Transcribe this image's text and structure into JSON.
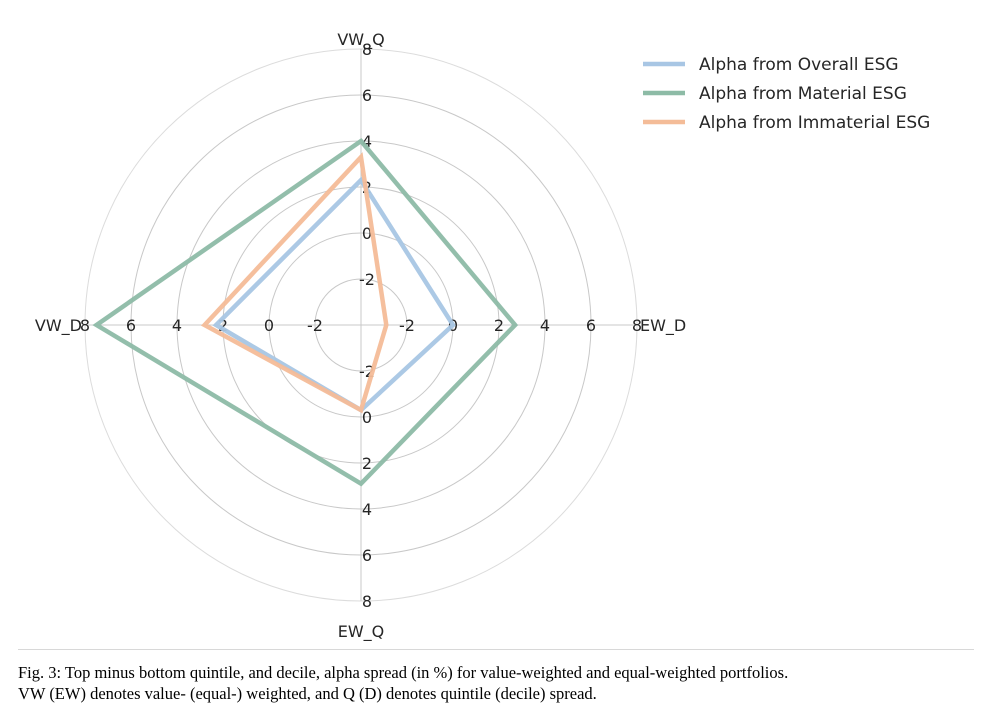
{
  "chart_data": {
    "type": "radar",
    "axes": [
      "VW_Q",
      "EW_D",
      "EW_Q",
      "VW_D"
    ],
    "rlim": [
      -4,
      8
    ],
    "rticks": [
      -2,
      0,
      2,
      4,
      6,
      8
    ],
    "rtick_labels": [
      "-2",
      "0",
      "2",
      "4",
      "6",
      "8"
    ],
    "grid": true,
    "legend_position": "top-right",
    "series": [
      {
        "name": "Alpha from Overall ESG",
        "values": [
          2.3,
          0.0,
          -0.3,
          2.3
        ],
        "color": "#a8c6e4"
      },
      {
        "name": "Alpha from Material ESG",
        "values": [
          4.0,
          2.7,
          2.9,
          7.5
        ],
        "color": "#8dbba6"
      },
      {
        "name": "Alpha from Immaterial ESG",
        "values": [
          3.3,
          -2.9,
          -0.3,
          2.8
        ],
        "color": "#f4bc98"
      }
    ]
  },
  "caption": {
    "line1": "Fig. 3: Top minus bottom quintile, and decile, alpha spread (in %) for value-weighted and equal-weighted portfolios.",
    "line2": "VW (EW) denotes value- (equal-) weighted, and Q (D) denotes quintile (decile) spread."
  }
}
